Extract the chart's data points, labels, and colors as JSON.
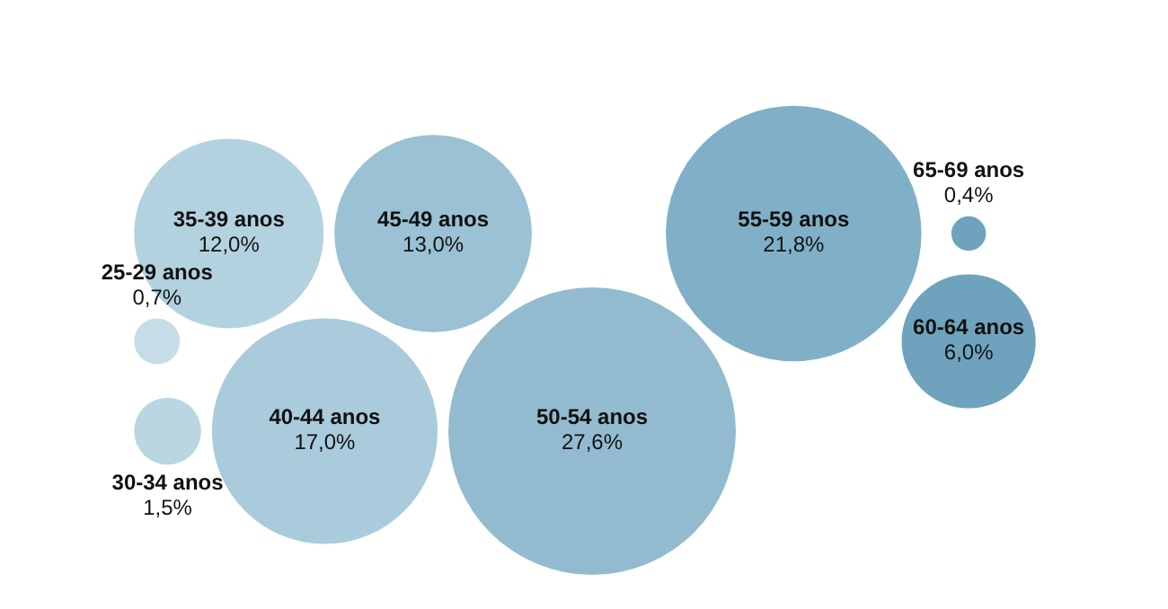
{
  "chart_data": {
    "type": "other",
    "categories": [
      "25-29 anos",
      "30-34 anos",
      "35-39 anos",
      "40-44 anos",
      "45-49 anos",
      "50-54 anos",
      "55-59 anos",
      "60-64 anos",
      "65-69 anos"
    ],
    "values": [
      0.7,
      1.5,
      12.0,
      17.0,
      13.0,
      27.6,
      21.8,
      6.0,
      0.4
    ],
    "value_labels": [
      "0,7%",
      "1,5%",
      "12,0%",
      "17,0%",
      "13,0%",
      "27,6%",
      "21,8%",
      "6,0%",
      "0,4%"
    ],
    "colors": [
      "#c6dde8",
      "#bad6e3",
      "#b3d2e0",
      "#a9cbdb",
      "#9ac1d4",
      "#93bbcf",
      "#80b0c7",
      "#6fa3bd",
      "#6fa3bd"
    ],
    "legend": false
  }
}
